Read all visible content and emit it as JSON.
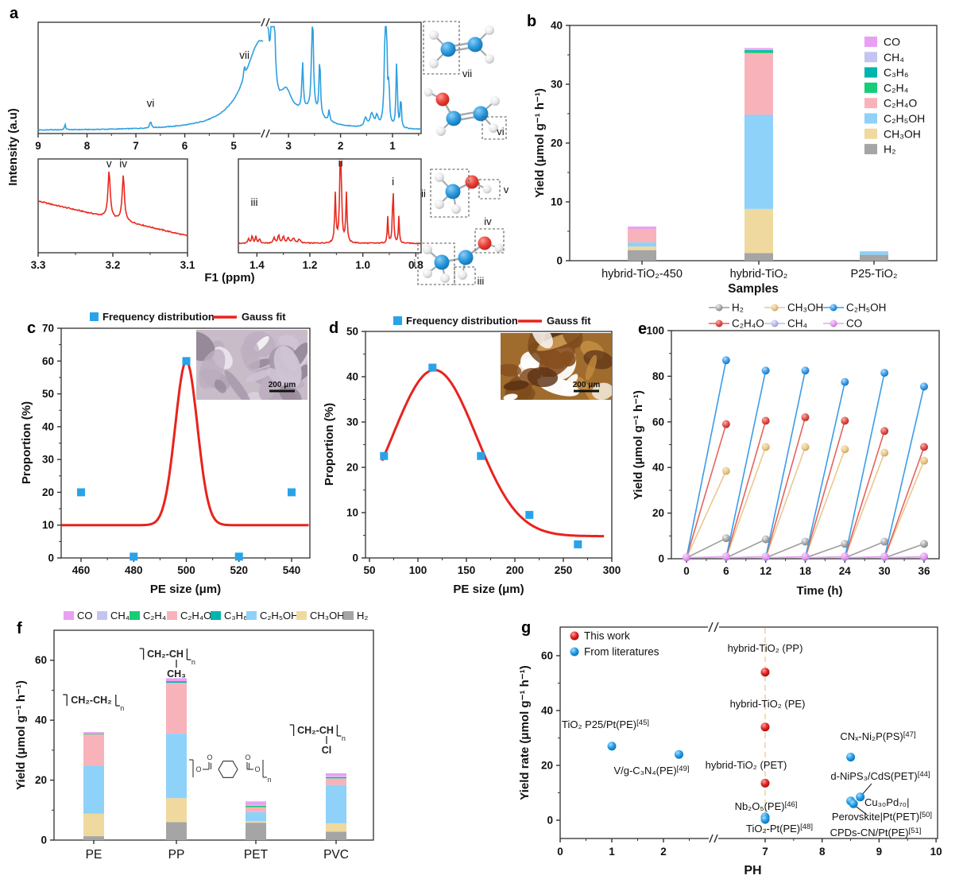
{
  "figure_labels": {
    "a": "a",
    "b": "b",
    "c": "c",
    "d": "d",
    "e": "e",
    "f": "f",
    "g": "g"
  },
  "species_colors": {
    "CO": "#e9a0f2",
    "CH₄": "#c4c4f2",
    "C₃H₆": "#00b5ad",
    "C₂H₄": "#16cd78",
    "C₂H₄O": "#f8b3ba",
    "C₂H₅OH": "#8ed1f9",
    "CH₃OH": "#f0d99e",
    "H₂": "#a5a5a5"
  },
  "panel_a": {
    "ylabel": "Intensity (a.u)",
    "xlabel": "F1 (ppm)",
    "spectra": {
      "main": {
        "name": "nmr-full-spectrum",
        "ticks": [
          [
            9,
            "9"
          ],
          [
            8,
            "8"
          ],
          [
            7,
            "7"
          ],
          [
            6,
            "6"
          ],
          [
            5,
            "5"
          ],
          [
            3,
            "3"
          ],
          [
            2,
            "2"
          ],
          [
            1,
            "1"
          ]
        ],
        "minor": [
          8.5,
          7.5,
          6.5,
          5.5,
          2.5,
          1.5,
          0.5
        ],
        "peaks": [
          [
            8.45,
            0.045,
            0.015
          ],
          [
            6.7,
            0.06,
            0.02
          ],
          [
            4.45,
            0.8,
            0.4
          ],
          [
            4.78,
            0.1,
            0.018
          ],
          [
            3.44,
            2.0,
            0.035
          ],
          [
            3.3,
            1.6,
            0.03
          ],
          [
            3.05,
            0.25,
            0.15
          ],
          [
            2.73,
            0.42,
            0.016
          ],
          [
            2.6,
            0.12,
            0.3
          ],
          [
            2.54,
            0.95,
            0.02
          ],
          [
            2.4,
            0.52,
            0.016
          ],
          [
            2.22,
            0.1,
            0.015
          ],
          [
            1.52,
            0.08,
            0.03
          ],
          [
            1.4,
            0.12,
            0.04
          ],
          [
            1.3,
            0.09,
            0.03
          ],
          [
            1.13,
            1.9,
            0.018
          ],
          [
            1.07,
            0.35,
            0.012
          ],
          [
            0.92,
            0.6,
            0.015
          ],
          [
            0.84,
            0.3,
            0.012
          ]
        ],
        "labels": [
          {
            "text": "vi",
            "ppm": 6.7,
            "fy": 0.76
          },
          {
            "text": "vii",
            "ppm": 4.78,
            "fy": 0.33
          }
        ]
      },
      "left": {
        "name": "nmr-zoom-3ppm",
        "ticks": [
          [
            3.3,
            "3.3"
          ],
          [
            3.2,
            "3.2"
          ],
          [
            3.1,
            "3.1"
          ]
        ],
        "minor": [
          3.25,
          3.15
        ],
        "peaks": [
          [
            3.205,
            0.5,
            0.0018
          ],
          [
            3.186,
            0.48,
            0.0018
          ]
        ],
        "labels": [
          {
            "text": "v",
            "ppm": 3.205,
            "fy": 0.09
          },
          {
            "text": "iv",
            "ppm": 3.186,
            "fy": 0.09
          }
        ]
      },
      "right": {
        "name": "nmr-zoom-1ppm",
        "ticks": [
          [
            1.4,
            "1.4"
          ],
          [
            1.2,
            "1.2"
          ],
          [
            1.0,
            "1.0"
          ],
          [
            0.8,
            "0.8"
          ]
        ],
        "minor": [
          1.3,
          1.1,
          0.9
        ],
        "peaks": [
          [
            1.432,
            0.05,
            0.003
          ],
          [
            1.418,
            0.08,
            0.003
          ],
          [
            1.404,
            0.07,
            0.003
          ],
          [
            1.39,
            0.05,
            0.003
          ],
          [
            1.335,
            0.06,
            0.004
          ],
          [
            1.318,
            0.08,
            0.004
          ],
          [
            1.3,
            0.07,
            0.004
          ],
          [
            1.282,
            0.06,
            0.004
          ],
          [
            1.262,
            0.05,
            0.006
          ],
          [
            1.24,
            0.04,
            0.005
          ],
          [
            1.104,
            0.52,
            0.0028
          ],
          [
            1.084,
            1.5,
            0.003
          ],
          [
            1.062,
            0.52,
            0.0028
          ],
          [
            0.906,
            0.28,
            0.0022
          ],
          [
            0.886,
            0.6,
            0.0026
          ],
          [
            0.864,
            0.28,
            0.0022
          ]
        ],
        "labels": [
          {
            "text": "iii",
            "ppm": 1.41,
            "fy": 0.5
          },
          {
            "text": "ii",
            "ppm": 1.084,
            "fy": 0.08
          },
          {
            "text": "i",
            "ppm": 0.886,
            "fy": 0.28
          }
        ]
      }
    },
    "molecules": {
      "m1": "vii",
      "m2": "vi",
      "m3_left": "ii",
      "m3_right": "v",
      "m4_left": "i",
      "m4_bottom": "iii",
      "m4_top": "iv"
    }
  },
  "chart_data": [
    {
      "id": "b",
      "type": "bar",
      "xlabel": "Samples",
      "ylabel": "Yield (μmol g⁻¹ h⁻¹)",
      "ylim": [
        0,
        40
      ],
      "yticks": [
        0,
        10,
        20,
        30,
        40
      ],
      "categories": [
        "hybrid-TiO₂-450",
        "hybrid-TiO₂",
        "P25-TiO₂"
      ],
      "legend_order": [
        "CO",
        "CH₄",
        "C₃H₆",
        "C₂H₄",
        "C₂H₄O",
        "C₂H₅OH",
        "CH₃OH",
        "H₂"
      ],
      "stack_order": [
        "H₂",
        "CH₃OH",
        "C₂H₅OH",
        "C₂H₄O",
        "C₂H₄",
        "C₃H₆",
        "CH₄",
        "CO"
      ],
      "series": {
        "H₂": [
          1.8,
          1.3,
          1.0
        ],
        "CH₃OH": [
          0.6,
          7.5,
          0
        ],
        "C₂H₅OH": [
          0.7,
          16.0,
          0.6
        ],
        "C₂H₄O": [
          2.3,
          10.5,
          0
        ],
        "C₂H₄": [
          0,
          0.25,
          0
        ],
        "C₃H₆": [
          0,
          0.25,
          0
        ],
        "CH₄": [
          0,
          0.15,
          0
        ],
        "CO": [
          0.4,
          0.2,
          0
        ]
      }
    },
    {
      "id": "c",
      "type": "scatter",
      "xlabel": "PE size (μm)",
      "ylabel": "Proportion (%)",
      "xlim": [
        452,
        548
      ],
      "ylim": [
        0,
        70
      ],
      "xticks": [
        460,
        480,
        500,
        520,
        540
      ],
      "yticks": [
        0,
        10,
        20,
        30,
        40,
        50,
        60,
        70
      ],
      "legend": {
        "points": "Frequency distribution",
        "fit": "Gauss fit"
      },
      "points": [
        [
          460,
          20
        ],
        [
          480,
          0.4
        ],
        [
          500,
          60
        ],
        [
          520,
          0.4
        ],
        [
          540,
          20
        ]
      ],
      "gauss": {
        "y0": 10,
        "A": 50,
        "mu": 500,
        "sigma": 4.2
      },
      "fit_range": [
        452.5,
        546.5
      ],
      "inset_scalebar": "200 μm"
    },
    {
      "id": "d",
      "type": "scatter",
      "xlabel": "PE size (μm)",
      "ylabel": "Proportion (%)",
      "xlim": [
        46,
        300
      ],
      "ylim": [
        0,
        50
      ],
      "xticks": [
        50,
        100,
        150,
        200,
        250,
        300
      ],
      "yticks": [
        0,
        10,
        20,
        30,
        40,
        50
      ],
      "legend": {
        "points": "Frequency distribution",
        "fit": "Gauss fit"
      },
      "points": [
        [
          65,
          22.5
        ],
        [
          115,
          42
        ],
        [
          165,
          22.5
        ],
        [
          215,
          9.5
        ],
        [
          265,
          3
        ]
      ],
      "gauss": {
        "y0": 4.8,
        "A": 36.7,
        "mu": 117,
        "sigma": 43
      },
      "fit_range": [
        63,
        292
      ],
      "inset_scalebar": "200 μm"
    },
    {
      "id": "e",
      "type": "line",
      "xlabel": "Time (h)",
      "ylabel": "Yield (μmol g⁻¹ h⁻¹)",
      "ylim": [
        0,
        100
      ],
      "xticks": [
        0,
        6,
        12,
        18,
        24,
        30,
        36
      ],
      "yticks": [
        0,
        20,
        40,
        60,
        80,
        100
      ],
      "cycle_ends": [
        6,
        12,
        18,
        24,
        30,
        36
      ],
      "series": [
        {
          "name": "H₂",
          "color": "#9e9e9e",
          "grad": "gs_gray",
          "peaks": [
            9,
            8.5,
            7.5,
            6.5,
            7.5,
            6.5
          ]
        },
        {
          "name": "CH₃OH",
          "color": "#e9c98e",
          "grad": "gs_tan",
          "peaks": [
            38.5,
            49,
            49,
            48,
            46.5,
            43
          ]
        },
        {
          "name": "C₂H₄O",
          "color": "#e4635f",
          "grad": "gs_red",
          "peaks": [
            59,
            60.5,
            62,
            60.5,
            56,
            49
          ]
        },
        {
          "name": "C₂H₅OH",
          "color": "#3b9de8",
          "grad": "gs_blue",
          "peaks": [
            87,
            82.5,
            82.5,
            77.5,
            81.5,
            75.5
          ]
        },
        {
          "name": "CH₄",
          "color": "#bcbcf2",
          "grad": "gs_lav",
          "peaks": [
            0.8,
            0.8,
            0.8,
            0.8,
            0.8,
            0.8
          ]
        },
        {
          "name": "CO",
          "color": "#e9a0f2",
          "grad": "gs_vio",
          "peaks": [
            1.0,
            1.0,
            1.0,
            1.0,
            1.0,
            1.0
          ]
        }
      ],
      "legend_rows": [
        [
          "H₂",
          "CH₃OH",
          "C₂H₅OH"
        ],
        [
          "C₂H₄O",
          "CH₄",
          "CO"
        ]
      ]
    },
    {
      "id": "f",
      "type": "bar",
      "xlabel": "",
      "ylabel": "Yield (μmol g⁻¹ h⁻¹)",
      "ylim": [
        0,
        70
      ],
      "yticks": [
        0,
        20,
        40,
        60
      ],
      "categories": [
        "PE",
        "PP",
        "PET",
        "PVC"
      ],
      "legend_order": [
        "CO",
        "CH₄",
        "C₂H₄",
        "C₂H₄O",
        "C₃H₆",
        "C₂H₅OH",
        "CH₃OH",
        "H₂"
      ],
      "stack_order": [
        "H₂",
        "CH₃OH",
        "C₂H₅OH",
        "C₂H₄O",
        "C₃H₆",
        "C₂H₄",
        "CH₄",
        "CO"
      ],
      "series": {
        "H₂": [
          1.3,
          6.0,
          5.8,
          2.8
        ],
        "CH₃OH": [
          7.5,
          8.0,
          0.5,
          2.8
        ],
        "C₂H₅OH": [
          16.0,
          21.5,
          3.0,
          12.8
        ],
        "C₂H₄O": [
          10.5,
          17.0,
          1.7,
          2.2
        ],
        "C₃H₆": [
          0,
          0.5,
          0,
          0.4
        ],
        "C₂H₄": [
          0.25,
          0,
          0.4,
          0
        ],
        "CH₄": [
          0.15,
          0,
          0.3,
          0.3
        ],
        "CO": [
          0.35,
          1.0,
          1.2,
          1.0
        ]
      },
      "formulas": {
        "PE": {
          "main": "CH₂-CH₂",
          "sub": ""
        },
        "PP": {
          "main": "CH₂-CH",
          "sub": "CH₃"
        },
        "PVC": {
          "main": "CH₂-CH",
          "sub": "Cl"
        },
        "n": "n"
      }
    },
    {
      "id": "g",
      "type": "scatter",
      "xlabel": "PH",
      "ylabel": "Yield rate (μmol g⁻¹ h⁻¹)",
      "yticks": [
        0,
        20,
        40,
        60
      ],
      "xticks_left": [
        0,
        1,
        2
      ],
      "xticks_right": [
        7,
        8,
        9,
        10
      ],
      "legend": [
        {
          "label": "This work",
          "series": "this"
        },
        {
          "label": "From literatures",
          "series": "lit"
        }
      ],
      "dashed_line_ph": 7,
      "points": [
        {
          "series": "lit",
          "ph": 1,
          "y": 27
        },
        {
          "series": "lit",
          "ph": 2.3,
          "y": 24
        },
        {
          "series": "lit",
          "ph": 7,
          "y": 1.2
        },
        {
          "series": "lit",
          "ph": 7,
          "y": 0.3
        },
        {
          "series": "lit",
          "ph": 8.5,
          "y": 23
        },
        {
          "series": "lit",
          "ph": 8.67,
          "y": 8.5
        },
        {
          "series": "lit",
          "ph": 8.5,
          "y": 7
        },
        {
          "series": "lit",
          "ph": 8.55,
          "y": 6
        },
        {
          "series": "this",
          "ph": 7,
          "y": 54
        },
        {
          "series": "this",
          "ph": 7,
          "y": 34
        },
        {
          "series": "this",
          "ph": 7,
          "y": 13.5
        }
      ],
      "annotations": [
        {
          "text": "hybrid-TiO₂ (PP)",
          "x": 313,
          "y": 57,
          "anchor": "middle"
        },
        {
          "text": "hybrid-TiO₂ (PE)",
          "x": 316,
          "y": 127,
          "anchor": "middle"
        },
        {
          "text": "hybrid-TiO₂ (PET)",
          "x": 289,
          "y": 204,
          "anchor": "middle"
        },
        {
          "text": "TiO₂ P25/Pt(PE)[45]",
          "x": 112,
          "y": 153,
          "anchor": "middle"
        },
        {
          "text": "V/g-C₃N₄(PE)[49]",
          "x": 170,
          "y": 211,
          "anchor": "middle"
        },
        {
          "text": "Nb₂O₅(PE)[46]",
          "x": 314,
          "y": 256,
          "anchor": "middle"
        },
        {
          "text": "TiO₂-Pt(PE)[48]",
          "x": 331,
          "y": 284,
          "anchor": "middle"
        },
        {
          "text": "CNₓ-Ni₂P(PS)[47]",
          "x": 455,
          "y": 168,
          "anchor": "middle"
        },
        {
          "text": "d-NiPS₃/CdS(PET)[44]",
          "x": 458,
          "y": 218,
          "anchor": "middle",
          "leader": [
            447,
            223,
            434,
            238
          ]
        },
        {
          "text": "Cu₃₀Pd₇₀|",
          "x": 438,
          "y": 251,
          "anchor": "start"
        },
        {
          "text": "Perovskite|Pt(PET)[50]",
          "x": 460,
          "y": 269,
          "anchor": "middle",
          "leader": [
            441,
            262,
            425,
            250
          ]
        },
        {
          "text": "CPDs-CN/Pt(PE)[51]",
          "x": 452,
          "y": 289,
          "anchor": "middle"
        }
      ]
    }
  ]
}
